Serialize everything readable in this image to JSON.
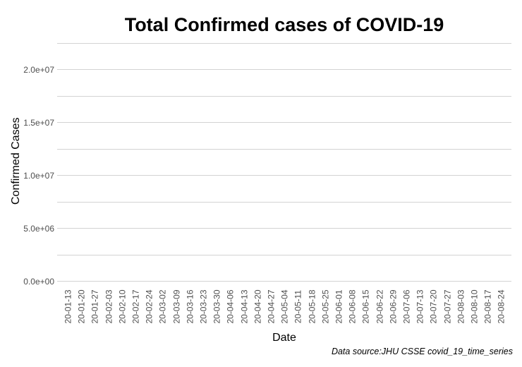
{
  "chart_data": {
    "type": "line",
    "title": "Total Confirmed cases of COVID-19",
    "xlabel": "Date",
    "ylabel": "Confirmed Cases",
    "caption": "Data source:JHU CSSE covid_19_time_series",
    "series": [],
    "note": "plot panel is empty - no data line, points or legend are rendered in the pixels",
    "grid": "horizontal gridlines only, no vertical gridlines, no axis lines, no tick marks",
    "legend": "none",
    "x_tick_labels": [
      "20-01-13",
      "20-01-20",
      "20-01-27",
      "20-02-03",
      "20-02-10",
      "20-02-17",
      "20-02-24",
      "20-03-02",
      "20-03-09",
      "20-03-16",
      "20-03-23",
      "20-03-30",
      "20-04-06",
      "20-04-13",
      "20-04-20",
      "20-04-27",
      "20-05-04",
      "20-05-11",
      "20-05-18",
      "20-05-25",
      "20-06-01",
      "20-06-08",
      "20-06-15",
      "20-06-22",
      "20-06-29",
      "20-07-06",
      "20-07-13",
      "20-07-20",
      "20-07-27",
      "20-08-03",
      "20-08-10",
      "20-08-17",
      "20-08-24"
    ],
    "y_axis": {
      "tick_labels": [
        "0.0e+00",
        "5.0e+06",
        "1.0e+07",
        "1.5e+07",
        "2.0e+07"
      ],
      "tick_values": [
        0,
        5000000,
        10000000,
        15000000,
        20000000
      ],
      "gridline_values": [
        0,
        2500000,
        5000000,
        7500000,
        10000000,
        12500000,
        15000000,
        17500000,
        20000000,
        22500000
      ],
      "range": [
        0,
        22500000
      ]
    },
    "xlim_labels": [
      "20-01-13",
      "20-08-24"
    ],
    "colors": {
      "background": "#ffffff",
      "gridline": "#d3d3d3",
      "tick_label": "#4d4d4d",
      "text": "#000000"
    }
  }
}
